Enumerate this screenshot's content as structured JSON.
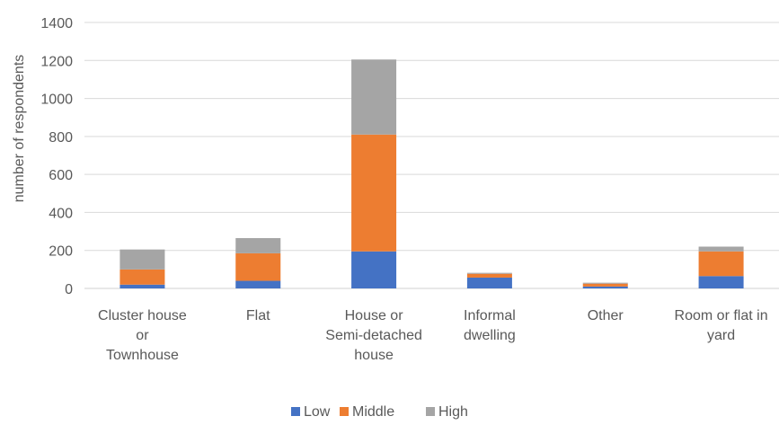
{
  "chart_data": {
    "type": "bar",
    "stacked": true,
    "title": "",
    "xlabel": "",
    "ylabel": "number of respondents",
    "ylim": [
      0,
      1400
    ],
    "yticks": [
      0,
      200,
      400,
      600,
      800,
      1000,
      1200,
      1400
    ],
    "grid": true,
    "legend_position": "bottom",
    "categories": [
      [
        "Cluster house",
        "or",
        "Townhouse"
      ],
      [
        "Flat"
      ],
      [
        "House or",
        "Semi-detached",
        "house"
      ],
      [
        "Informal",
        "dwelling"
      ],
      [
        "Other"
      ],
      [
        "Room or flat in",
        "yard"
      ]
    ],
    "series": [
      {
        "name": "Low",
        "color": "#4472C4",
        "values": [
          20,
          40,
          195,
          57,
          10,
          65
        ]
      },
      {
        "name": "Middle",
        "color": "#ED7D31",
        "values": [
          80,
          145,
          615,
          20,
          15,
          130
        ]
      },
      {
        "name": "High",
        "color": "#A5A5A5",
        "values": [
          105,
          80,
          395,
          5,
          5,
          25
        ]
      }
    ]
  }
}
